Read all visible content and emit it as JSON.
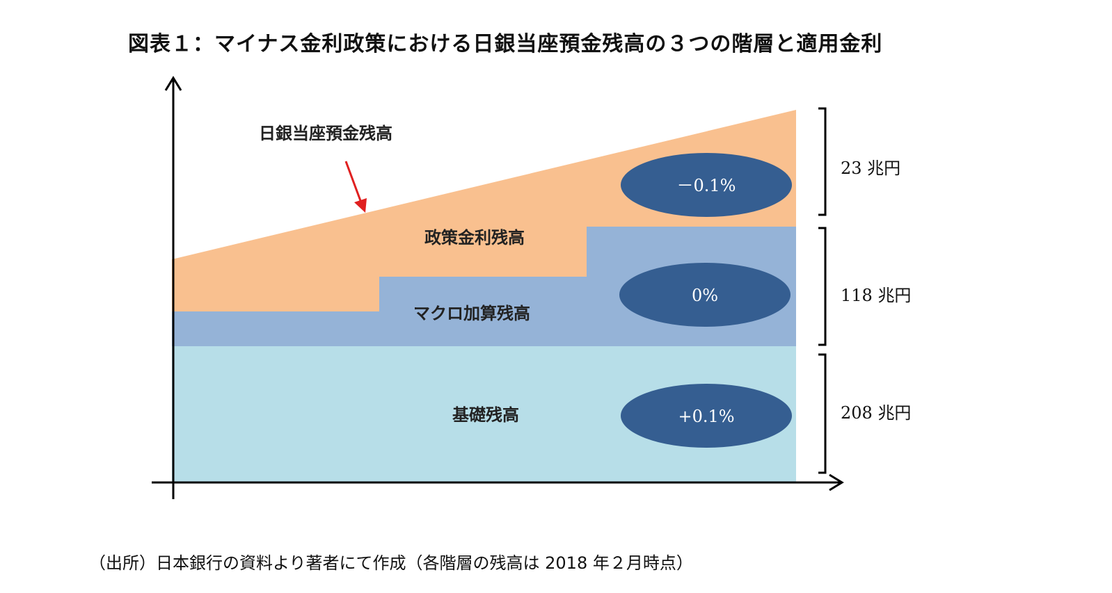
{
  "title": "図表１：マイナス金利政策における日銀当座預金残高の３つの階層と適用金利",
  "labels": {
    "total_balance": "日銀当座預金残高",
    "policy_rate_balance": "政策金利残高",
    "macro_add_on_balance": "マクロ加算残高",
    "basic_balance": "基礎残高"
  },
  "rates": {
    "policy_rate_balance": "－0.1%",
    "macro_add_on_balance": "0%",
    "basic_balance": "+0.1%"
  },
  "amounts": {
    "policy_rate_balance": "23 兆円",
    "macro_add_on_balance": "118 兆円",
    "basic_balance": "208 兆円"
  },
  "colors": {
    "policy_rate_balance": "#f9c08f",
    "macro_add_on_balance": "#95b3d7",
    "basic_balance": "#b7dee8",
    "rate_ellipse": "#355e91",
    "arrow": "#e02020"
  },
  "source": "（出所）日本銀行の資料より著者にて作成（各階層の残高は 2018 年２月時点）"
}
